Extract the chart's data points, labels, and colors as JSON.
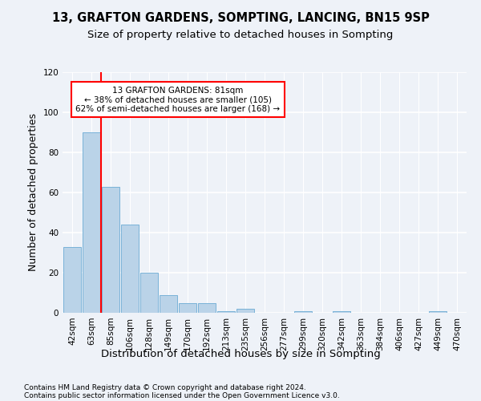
{
  "title1": "13, GRAFTON GARDENS, SOMPTING, LANCING, BN15 9SP",
  "title2": "Size of property relative to detached houses in Sompting",
  "xlabel": "Distribution of detached houses by size in Sompting",
  "ylabel": "Number of detached properties",
  "footer1": "Contains HM Land Registry data © Crown copyright and database right 2024.",
  "footer2": "Contains public sector information licensed under the Open Government Licence v3.0.",
  "bin_labels": [
    "42sqm",
    "63sqm",
    "85sqm",
    "106sqm",
    "128sqm",
    "149sqm",
    "170sqm",
    "192sqm",
    "213sqm",
    "235sqm",
    "256sqm",
    "277sqm",
    "299sqm",
    "320sqm",
    "342sqm",
    "363sqm",
    "384sqm",
    "406sqm",
    "427sqm",
    "449sqm",
    "470sqm"
  ],
  "bar_heights": [
    33,
    90,
    63,
    44,
    20,
    9,
    5,
    5,
    1,
    2,
    0,
    0,
    1,
    0,
    1,
    0,
    0,
    0,
    0,
    1,
    0
  ],
  "bar_color": "#bad3e8",
  "bar_edge_color": "#6aaad4",
  "red_line_color": "red",
  "annotation_text": "13 GRAFTON GARDENS: 81sqm\n← 38% of detached houses are smaller (105)\n62% of semi-detached houses are larger (168) →",
  "annotation_box_color": "white",
  "annotation_box_edge": "red",
  "ylim": [
    0,
    120
  ],
  "yticks": [
    0,
    20,
    40,
    60,
    80,
    100,
    120
  ],
  "background_color": "#eef2f8",
  "grid_color": "white",
  "title_fontsize": 10.5,
  "subtitle_fontsize": 9.5,
  "axis_label_fontsize": 9,
  "tick_fontsize": 7.5,
  "footer_fontsize": 6.5
}
